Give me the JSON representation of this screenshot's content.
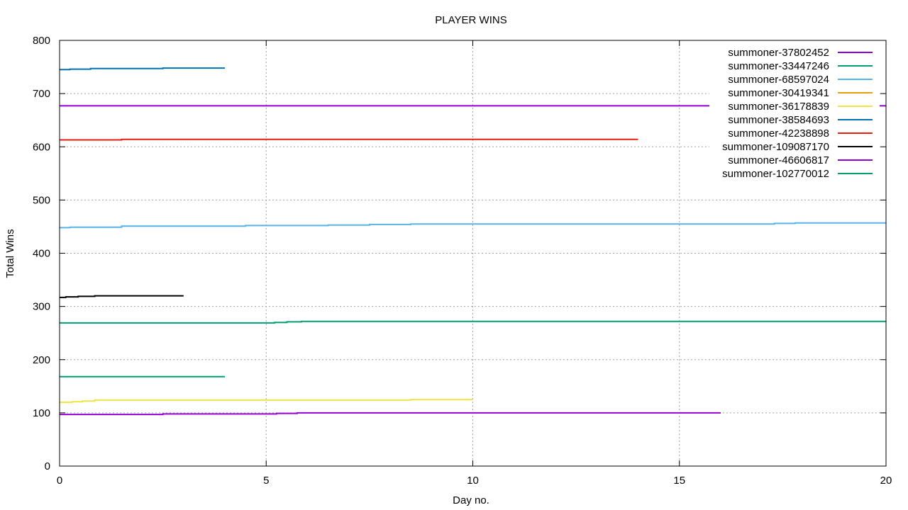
{
  "chart_data": {
    "type": "line",
    "title": "PLAYER WINS",
    "xlabel": "Day no.",
    "ylabel": "Total Wins",
    "xlim": [
      0,
      20
    ],
    "ylim": [
      0,
      800
    ],
    "xticks": [
      0,
      5,
      10,
      15,
      20
    ],
    "yticks": [
      0,
      100,
      200,
      300,
      400,
      500,
      600,
      700,
      800
    ],
    "grid": true,
    "legend_position": "top-right",
    "series": [
      {
        "name": "summoner-37802452",
        "color": "#9400d3",
        "x": [
          0,
          20
        ],
        "y": [
          677,
          677
        ]
      },
      {
        "name": "summoner-33447246",
        "color": "#009e73",
        "x": [
          0,
          4
        ],
        "y": [
          168,
          168
        ]
      },
      {
        "name": "summoner-68597024",
        "color": "#56b4e9",
        "x": [
          0,
          0.25,
          1.5,
          4.5,
          6.5,
          7.5,
          8.5,
          17.3,
          17.8,
          20
        ],
        "y": [
          448,
          449,
          451,
          452,
          453,
          454,
          455,
          456,
          457,
          457
        ]
      },
      {
        "name": "summoner-30419341",
        "color": "#e69f00",
        "x": [],
        "y": []
      },
      {
        "name": "summoner-36178839",
        "color": "#f0e442",
        "x": [
          0,
          0.3,
          0.55,
          0.85,
          8.5,
          10
        ],
        "y": [
          120,
          121,
          122,
          124,
          125,
          125
        ]
      },
      {
        "name": "summoner-38584693",
        "color": "#0072b2",
        "x": [
          0,
          0.25,
          0.75,
          2.5,
          4
        ],
        "y": [
          745,
          746,
          747,
          748,
          748
        ]
      },
      {
        "name": "summoner-42238898",
        "color": "#e51e10",
        "x": [
          0,
          1.5,
          14
        ],
        "y": [
          613,
          614,
          614
        ]
      },
      {
        "name": "summoner-109087170",
        "color": "#000000",
        "x": [
          0,
          0.15,
          0.45,
          0.85,
          3
        ],
        "y": [
          317,
          318,
          319,
          320,
          320
        ]
      },
      {
        "name": "summoner-46606817",
        "color": "#9400d3",
        "x": [
          0,
          2.5,
          5.25,
          5.75,
          16
        ],
        "y": [
          97,
          98,
          99,
          100,
          100
        ]
      },
      {
        "name": "summoner-102770012",
        "color": "#009e73",
        "x": [
          0,
          5.2,
          5.5,
          5.85,
          20
        ],
        "y": [
          269,
          270,
          271,
          272,
          272
        ]
      }
    ]
  }
}
